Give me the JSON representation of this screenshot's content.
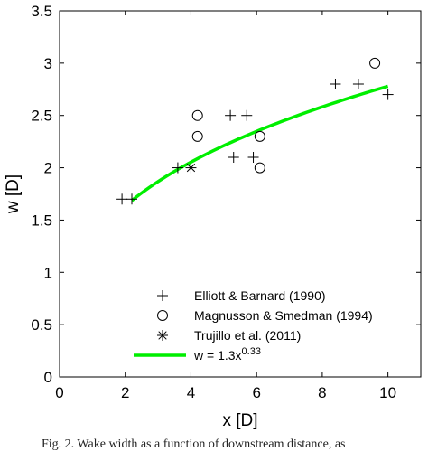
{
  "chart_data": {
    "type": "scatter",
    "xlabel": "x [D]",
    "ylabel": "w [D]",
    "xlim": [
      0,
      11
    ],
    "ylim": [
      0,
      3.5
    ],
    "xticks": [
      "0",
      "2",
      "4",
      "6",
      "8",
      "10"
    ],
    "yticks": [
      "0",
      "0.5",
      "1",
      "1.5",
      "2",
      "2.5",
      "3",
      "3.5"
    ],
    "grid": false,
    "legend_position": "bottom-center",
    "series": [
      {
        "name": "Elliott & Barnard (1990)",
        "marker": "plus",
        "x": [
          1.9,
          2.2,
          3.6,
          5.2,
          5.7,
          5.9,
          5.3,
          8.4,
          9.1,
          10.0
        ],
        "y": [
          1.7,
          1.7,
          2.0,
          2.5,
          2.5,
          2.1,
          2.1,
          2.8,
          2.8,
          2.7
        ]
      },
      {
        "name": "Magnusson & Smedman (1994)",
        "marker": "circle",
        "x": [
          4.2,
          4.2,
          6.1,
          6.1,
          9.6
        ],
        "y": [
          2.5,
          2.3,
          2.3,
          2.0,
          3.0
        ]
      },
      {
        "name": "Trujillo et al. (2011)",
        "marker": "asterisk",
        "x": [
          4.0
        ],
        "y": [
          2.0
        ]
      },
      {
        "name": "w = 1.3x",
        "name_superscript": "0.33",
        "type": "line",
        "color": "#00ee00",
        "coefficient": 1.3,
        "exponent": 0.33,
        "x_range": [
          2.2,
          10.0
        ]
      }
    ]
  },
  "caption": "Fig. 2. Wake width as a function of downstream distance, as"
}
